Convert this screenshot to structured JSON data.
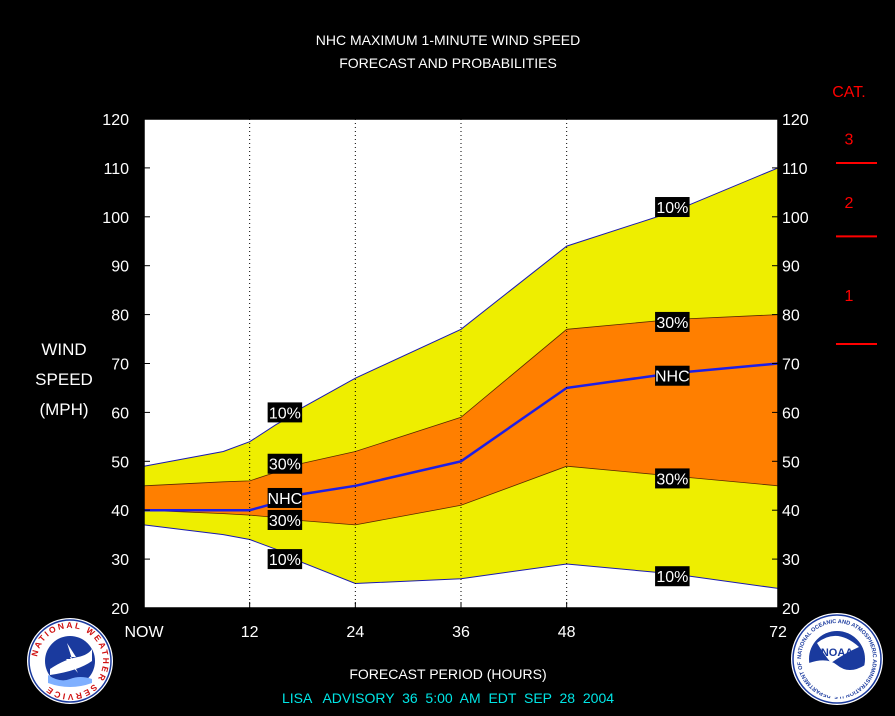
{
  "chart_data": {
    "type": "area",
    "title": "NHC MAXIMUM 1-MINUTE WIND SPEED",
    "subtitle": "FORECAST AND PROBABILITIES",
    "ylabel": [
      "WIND",
      "SPEED",
      "(MPH)"
    ],
    "xlabel": "FORECAST PERIOD (HOURS)",
    "ylim": [
      20,
      120
    ],
    "yticks": [
      20,
      30,
      40,
      50,
      60,
      70,
      80,
      90,
      100,
      110,
      120
    ],
    "xlim": [
      0,
      72
    ],
    "xticks": [
      {
        "x": 0,
        "label": "NOW"
      },
      {
        "x": 12,
        "label": "12"
      },
      {
        "x": 24,
        "label": "24"
      },
      {
        "x": 36,
        "label": "36"
      },
      {
        "x": 48,
        "label": "48"
      },
      {
        "x": 72,
        "label": "72"
      }
    ],
    "grid_x": [
      12,
      24,
      36,
      48
    ],
    "x": [
      0,
      9,
      12,
      15,
      16,
      17,
      24,
      36,
      48,
      60,
      72
    ],
    "series": [
      {
        "name": "10%",
        "role": "upper10",
        "color": "#eeee00",
        "values": [
          49,
          52,
          54,
          57.5,
          58.5,
          60,
          67,
          77,
          94,
          101,
          110
        ]
      },
      {
        "name": "30%",
        "role": "upper30",
        "color": "#ff7f00",
        "values": [
          45,
          45.8,
          46,
          47.8,
          48.5,
          49.2,
          52,
          59,
          77,
          79,
          80
        ]
      },
      {
        "name": "NHC",
        "role": "nhc",
        "color": "#1e1ee6",
        "values": [
          40,
          40,
          40,
          41.5,
          42.2,
          43,
          45,
          50,
          65,
          68,
          70
        ]
      },
      {
        "name": "30%",
        "role": "lower30",
        "color": "#ff7f00",
        "values": [
          40,
          39.3,
          39,
          38.5,
          38.2,
          38,
          37,
          41,
          49,
          47,
          45
        ]
      },
      {
        "name": "10%",
        "role": "lower10",
        "color": "#eeee00",
        "values": [
          37,
          35,
          34,
          32,
          31.3,
          30,
          25,
          26,
          29,
          27,
          24
        ]
      }
    ],
    "labels": [
      {
        "text": "10%",
        "x": 16,
        "y": 60
      },
      {
        "text": "30%",
        "x": 16,
        "y": 49.5
      },
      {
        "text": "NHC",
        "x": 16,
        "y": 42.5
      },
      {
        "text": "30%",
        "x": 16,
        "y": 38
      },
      {
        "text": "10%",
        "x": 16,
        "y": 30
      },
      {
        "text": "10%",
        "x": 60,
        "y": 102
      },
      {
        "text": "30%",
        "x": 60,
        "y": 78.5
      },
      {
        "text": "NHC",
        "x": 60,
        "y": 67.5
      },
      {
        "text": "30%",
        "x": 60,
        "y": 46.5
      },
      {
        "text": "10%",
        "x": 60,
        "y": 26.5
      }
    ],
    "category_scale": {
      "title": "CAT.",
      "color": "#ff0000",
      "thresholds": [
        74,
        96,
        111
      ],
      "labels": [
        {
          "text": "1",
          "y": 84
        },
        {
          "text": "2",
          "y": 103
        },
        {
          "text": "3",
          "y": 116
        }
      ]
    }
  },
  "footer": {
    "advisory": "LISA   ADVISORY  36  5:00  AM  EDT  SEP  28  2004",
    "advisory_color": "#00e5e5"
  },
  "logos": {
    "left": {
      "name": "national-weather-service-logo",
      "text": "NATIONAL WEATHER SERVICE"
    },
    "right": {
      "name": "noaa-logo",
      "text": "NOAA",
      "ring_text": "NATIONAL OCEANIC AND ATMOSPHERIC ADMINISTRATION U.S. DEPARTMENT OF COMMERCE"
    }
  },
  "colors": {
    "background": "#000000",
    "plot_background": "#ffffff",
    "band_10": "#eeee00",
    "band_30": "#ff7f00",
    "nhc_line": "#1e1ee6",
    "category": "#ff0000"
  }
}
